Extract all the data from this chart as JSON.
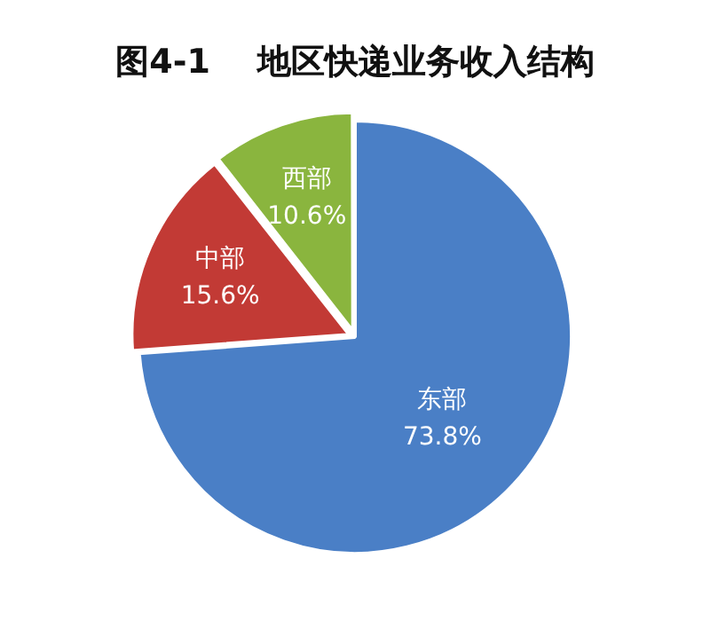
{
  "chart_data": {
    "type": "pie",
    "title": "图4-1    地区快递业务收入结构",
    "categories": [
      "东部",
      "中部",
      "西部"
    ],
    "values": [
      73.8,
      15.6,
      10.6
    ],
    "value_labels": [
      "73.8%",
      "15.6%",
      "10.6%"
    ],
    "colors": [
      "#4a7fc6",
      "#c23a35",
      "#8ab53e"
    ],
    "legend": false
  }
}
